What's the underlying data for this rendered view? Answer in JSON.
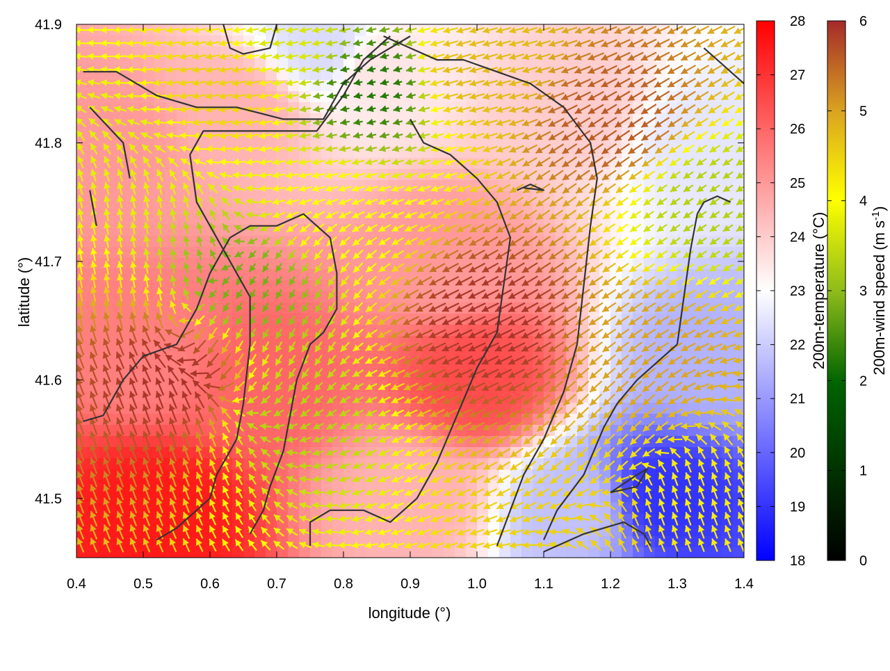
{
  "chart_data": {
    "type": "heatmap",
    "title": "",
    "xlabel": "longitude (°)",
    "ylabel": "latitude (°)",
    "xlim": [
      0.4,
      1.4
    ],
    "ylim": [
      41.45,
      41.9
    ],
    "xticks": [
      "0.4",
      "0.5",
      "0.6",
      "0.7",
      "0.8",
      "0.9",
      "1.0",
      "1.1",
      "1.2",
      "1.3",
      "1.4"
    ],
    "yticks": [
      "41.5",
      "41.6",
      "41.7",
      "41.8",
      "41.9"
    ],
    "grid": false,
    "temperature_colorbar": {
      "label": "200m-temperature (°C)",
      "range": [
        18,
        28
      ],
      "ticks": [
        "18",
        "19",
        "20",
        "21",
        "22",
        "23",
        "24",
        "25",
        "26",
        "27",
        "28"
      ],
      "colors": [
        "#0000ff",
        "#ffffff",
        "#ff0000"
      ]
    },
    "wind_colorbar": {
      "label_prefix": "200m-wind speed (m s",
      "label_exponent": "-1",
      "label_suffix": ")",
      "range": [
        0,
        6
      ],
      "ticks": [
        "0",
        "1",
        "2",
        "3",
        "4",
        "5",
        "6"
      ],
      "colors": [
        "#000000",
        "#006400",
        "#8fbc1a",
        "#ffff00",
        "#daa520",
        "#a52a2a"
      ]
    },
    "temperature_regions": [
      {
        "lon": 0.52,
        "lat": 41.49,
        "value": 27.5
      },
      {
        "lon": 0.5,
        "lat": 41.62,
        "value": 25.5
      },
      {
        "lon": 0.45,
        "lat": 41.8,
        "value": 25.0
      },
      {
        "lon": 0.68,
        "lat": 41.6,
        "value": 26.0
      },
      {
        "lon": 0.65,
        "lat": 41.83,
        "value": 24.5
      },
      {
        "lon": 0.77,
        "lat": 41.88,
        "value": 22.3
      },
      {
        "lon": 0.85,
        "lat": 41.86,
        "value": 23.5
      },
      {
        "lon": 0.95,
        "lat": 41.7,
        "value": 25.0
      },
      {
        "lon": 1.0,
        "lat": 41.6,
        "value": 26.5
      },
      {
        "lon": 1.15,
        "lat": 41.83,
        "value": 24.0
      },
      {
        "lon": 1.33,
        "lat": 41.8,
        "value": 22.5
      },
      {
        "lon": 1.35,
        "lat": 41.62,
        "value": 21.5
      },
      {
        "lon": 1.28,
        "lat": 41.5,
        "value": 19.0
      },
      {
        "lon": 1.15,
        "lat": 41.49,
        "value": 21.8
      },
      {
        "lon": 0.9,
        "lat": 41.5,
        "value": 24.5
      }
    ],
    "wind_speed_regions": [
      {
        "lon": 0.55,
        "lat": 41.6,
        "value": 5.9
      },
      {
        "lon": 0.66,
        "lat": 41.68,
        "value": 2.2
      },
      {
        "lon": 0.72,
        "lat": 41.57,
        "value": 2.8
      },
      {
        "lon": 0.78,
        "lat": 41.74,
        "value": 3.6
      },
      {
        "lon": 0.84,
        "lat": 41.85,
        "value": 1.5
      },
      {
        "lon": 0.72,
        "lat": 41.88,
        "value": 3.2
      },
      {
        "lon": 0.46,
        "lat": 41.8,
        "value": 3.3
      },
      {
        "lon": 0.62,
        "lat": 41.85,
        "value": 4.2
      },
      {
        "lon": 1.0,
        "lat": 41.86,
        "value": 4.5
      },
      {
        "lon": 1.02,
        "lat": 41.65,
        "value": 5.9
      },
      {
        "lon": 1.2,
        "lat": 41.82,
        "value": 5.5
      },
      {
        "lon": 1.35,
        "lat": 41.75,
        "value": 2.8
      },
      {
        "lon": 1.25,
        "lat": 41.62,
        "value": 4.8
      },
      {
        "lon": 1.3,
        "lat": 41.5,
        "value": 3.8
      },
      {
        "lon": 1.2,
        "lat": 41.48,
        "value": 4.2
      }
    ],
    "wind_direction_regions": [
      {
        "lon": 0.5,
        "lat": 41.7,
        "direction_deg": 100
      },
      {
        "lon": 0.5,
        "lat": 41.55,
        "direction_deg": 110
      },
      {
        "lon": 0.7,
        "lat": 41.85,
        "direction_deg": 190
      },
      {
        "lon": 0.68,
        "lat": 41.65,
        "direction_deg": 240
      },
      {
        "lon": 0.95,
        "lat": 41.85,
        "direction_deg": 195
      },
      {
        "lon": 0.95,
        "lat": 41.6,
        "direction_deg": 205
      },
      {
        "lon": 1.2,
        "lat": 41.75,
        "direction_deg": 215
      },
      {
        "lon": 1.2,
        "lat": 41.55,
        "direction_deg": 225
      },
      {
        "lon": 1.3,
        "lat": 41.5,
        "direction_deg": 110
      }
    ],
    "contours": [
      [
        [
          0.52,
          41.465
        ],
        [
          0.55,
          41.475
        ],
        [
          0.58,
          41.49
        ],
        [
          0.6,
          41.5
        ],
        [
          0.61,
          41.52
        ],
        [
          0.64,
          41.55
        ],
        [
          0.65,
          41.58
        ],
        [
          0.66,
          41.63
        ],
        [
          0.66,
          41.67
        ],
        [
          0.64,
          41.69
        ],
        [
          0.62,
          41.71
        ],
        [
          0.6,
          41.73
        ],
        [
          0.58,
          41.75
        ],
        [
          0.57,
          41.79
        ],
        [
          0.59,
          41.81
        ],
        [
          0.66,
          41.81
        ],
        [
          0.76,
          41.81
        ],
        [
          0.8,
          41.84
        ],
        [
          0.83,
          41.87
        ],
        [
          0.87,
          41.89
        ]
      ],
      [
        [
          0.41,
          41.86
        ],
        [
          0.46,
          41.86
        ],
        [
          0.52,
          41.84
        ],
        [
          0.58,
          41.83
        ],
        [
          0.64,
          41.83
        ],
        [
          0.71,
          41.82
        ],
        [
          0.77,
          41.82
        ],
        [
          0.8,
          41.85
        ],
        [
          0.84,
          41.87
        ],
        [
          0.9,
          41.89
        ]
      ],
      [
        [
          0.42,
          41.83
        ],
        [
          0.47,
          41.8
        ],
        [
          0.48,
          41.77
        ]
      ],
      [
        [
          0.42,
          41.76
        ],
        [
          0.43,
          41.73
        ]
      ],
      [
        [
          0.41,
          41.565
        ],
        [
          0.44,
          41.57
        ],
        [
          0.47,
          41.6
        ],
        [
          0.5,
          41.62
        ],
        [
          0.55,
          41.63
        ],
        [
          0.58,
          41.66
        ],
        [
          0.6,
          41.69
        ],
        [
          0.63,
          41.72
        ],
        [
          0.66,
          41.73
        ],
        [
          0.7,
          41.73
        ],
        [
          0.74,
          41.74
        ],
        [
          0.76,
          41.73
        ],
        [
          0.78,
          41.72
        ],
        [
          0.79,
          41.69
        ],
        [
          0.79,
          41.66
        ],
        [
          0.77,
          41.64
        ],
        [
          0.75,
          41.63
        ],
        [
          0.73,
          41.6
        ],
        [
          0.72,
          41.57
        ],
        [
          0.71,
          41.54
        ],
        [
          0.69,
          41.51
        ],
        [
          0.68,
          41.49
        ],
        [
          0.66,
          41.47
        ]
      ],
      [
        [
          0.75,
          41.46
        ],
        [
          0.75,
          41.48
        ],
        [
          0.78,
          41.49
        ],
        [
          0.83,
          41.49
        ],
        [
          0.87,
          41.48
        ],
        [
          0.91,
          41.5
        ],
        [
          0.94,
          41.53
        ],
        [
          0.97,
          41.57
        ],
        [
          1.0,
          41.61
        ],
        [
          1.03,
          41.64
        ],
        [
          1.04,
          41.68
        ],
        [
          1.05,
          41.72
        ],
        [
          1.03,
          41.75
        ],
        [
          1.0,
          41.77
        ],
        [
          0.96,
          41.79
        ],
        [
          0.92,
          41.8
        ],
        [
          0.9,
          41.82
        ]
      ],
      [
        [
          1.03,
          41.46
        ],
        [
          1.05,
          41.49
        ],
        [
          1.07,
          41.52
        ],
        [
          1.1,
          41.55
        ],
        [
          1.13,
          41.59
        ],
        [
          1.15,
          41.63
        ],
        [
          1.16,
          41.68
        ],
        [
          1.17,
          41.73
        ],
        [
          1.18,
          41.77
        ],
        [
          1.17,
          41.8
        ],
        [
          1.13,
          41.83
        ],
        [
          1.08,
          41.85
        ],
        [
          1.03,
          41.86
        ],
        [
          0.98,
          41.87
        ],
        [
          0.94,
          41.87
        ],
        [
          0.9,
          41.88
        ],
        [
          0.86,
          41.89
        ]
      ],
      [
        [
          1.1,
          41.455
        ],
        [
          1.16,
          41.47
        ],
        [
          1.22,
          41.48
        ],
        [
          1.25,
          41.47
        ],
        [
          1.26,
          41.46
        ]
      ],
      [
        [
          1.2,
          41.505
        ],
        [
          1.24,
          41.51
        ],
        [
          1.255,
          41.525
        ],
        [
          1.24,
          41.52
        ],
        [
          1.2,
          41.505
        ]
      ],
      [
        [
          1.33,
          41.74
        ],
        [
          1.34,
          41.75
        ],
        [
          1.36,
          41.755
        ],
        [
          1.38,
          41.75
        ]
      ],
      [
        [
          1.3,
          41.63
        ],
        [
          1.31,
          41.67
        ],
        [
          1.32,
          41.71
        ],
        [
          1.33,
          41.74
        ]
      ],
      [
        [
          1.3,
          41.63
        ],
        [
          1.28,
          41.62
        ],
        [
          1.24,
          41.6
        ],
        [
          1.21,
          41.58
        ],
        [
          1.19,
          41.56
        ],
        [
          1.16,
          41.52
        ],
        [
          1.12,
          41.49
        ],
        [
          1.1,
          41.465
        ]
      ],
      [
        [
          1.34,
          41.88
        ],
        [
          1.36,
          41.87
        ],
        [
          1.38,
          41.86
        ],
        [
          1.4,
          41.85
        ]
      ],
      [
        [
          0.62,
          41.9
        ],
        [
          0.63,
          41.88
        ],
        [
          0.65,
          41.875
        ],
        [
          0.69,
          41.88
        ],
        [
          0.7,
          41.9
        ]
      ],
      [
        [
          1.06,
          41.76
        ],
        [
          1.08,
          41.765
        ],
        [
          1.1,
          41.76
        ],
        [
          1.07,
          41.762
        ]
      ]
    ]
  }
}
